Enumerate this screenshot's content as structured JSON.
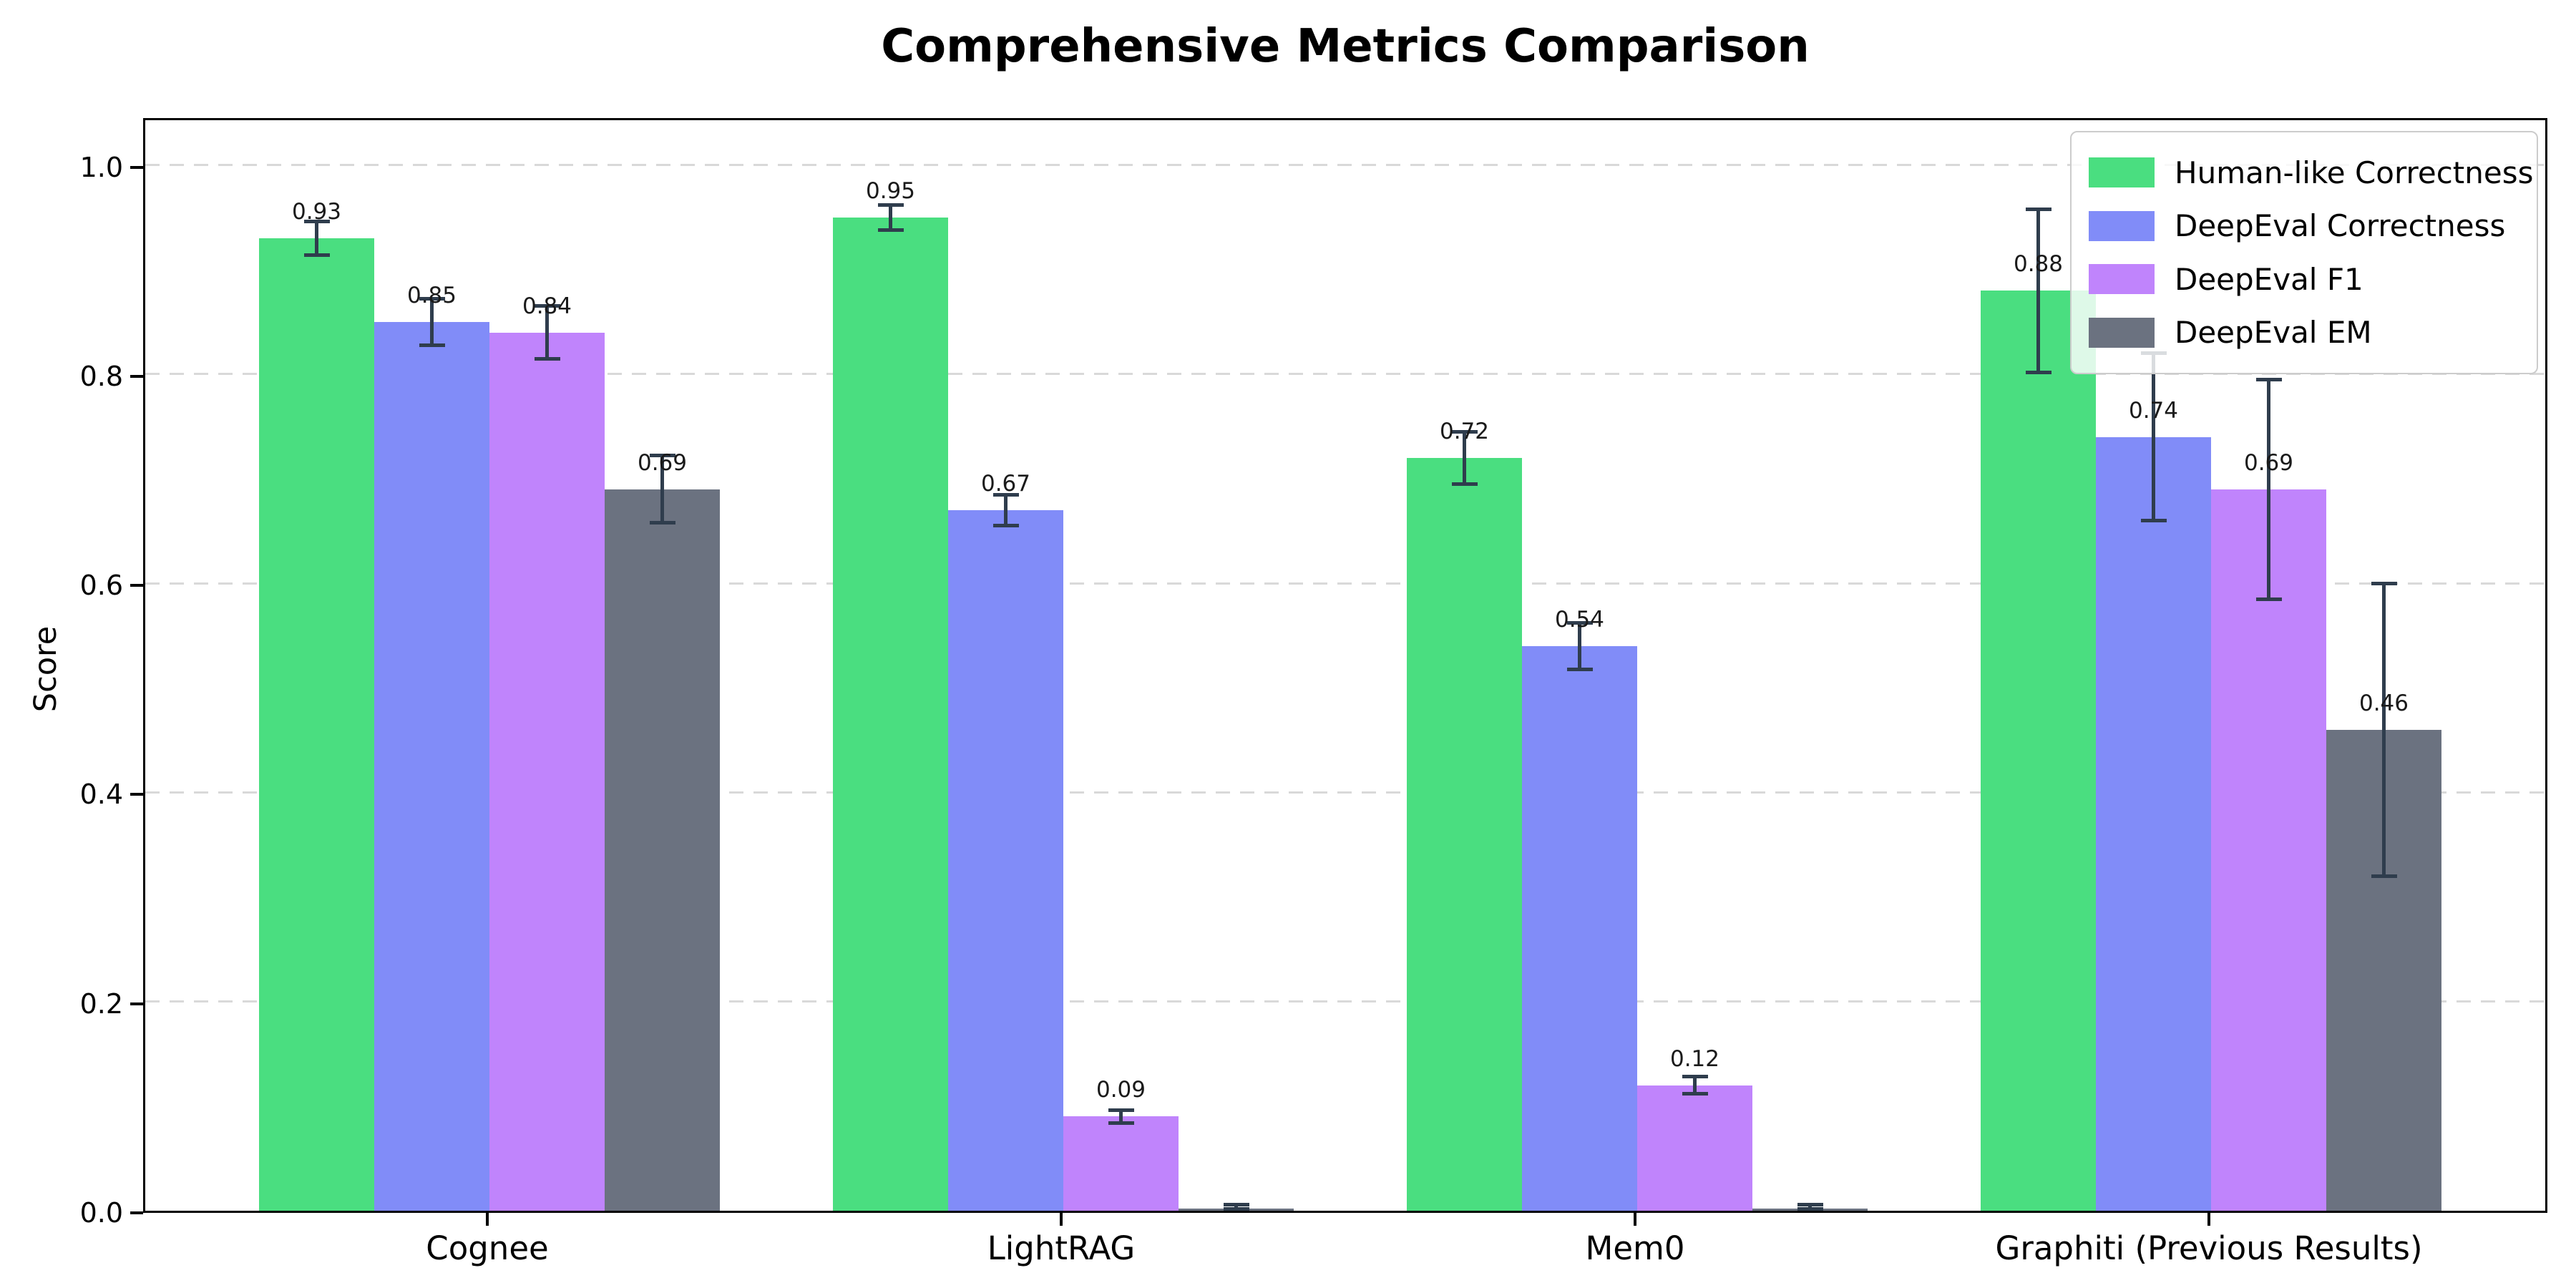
{
  "title": "Comprehensive Metrics Comparison",
  "chart_data": {
    "type": "bar",
    "title": "Comprehensive Metrics Comparison",
    "xlabel": "",
    "ylabel": "Score",
    "categories": [
      "Cognee",
      "LightRAG",
      "Mem0",
      "Graphiti (Previous Results)"
    ],
    "ylim": [
      0,
      1.047
    ],
    "yticks": [
      0.0,
      0.2,
      0.4,
      0.6,
      0.8,
      1.0
    ],
    "ytick_labels": [
      "0.0",
      "0.2",
      "0.4",
      "0.6",
      "0.8",
      "1.0"
    ],
    "grid": "horizontal-dashed",
    "grid_color": "#d9d9d9",
    "legend_position": "upper-right",
    "error_bar_color": "#2f3d4d",
    "bar_label_color": "#1a1a1a",
    "series": [
      {
        "name": "Human-like Correctness",
        "color": "#4ade80",
        "values": [
          0.93,
          0.95,
          0.72,
          0.88
        ],
        "errors": [
          0.016,
          0.012,
          0.025,
          0.078
        ],
        "bar_labels": [
          "0.93",
          "0.95",
          "0.72",
          "0.88"
        ]
      },
      {
        "name": "DeepEval Correctness",
        "color": "#818cf8",
        "values": [
          0.85,
          0.67,
          0.54,
          0.74
        ],
        "errors": [
          0.022,
          0.015,
          0.022,
          0.08
        ],
        "bar_labels": [
          "0.85",
          "0.67",
          "0.54",
          "0.74"
        ]
      },
      {
        "name": "DeepEval F1",
        "color": "#c084fc",
        "values": [
          0.84,
          0.09,
          0.12,
          0.69
        ],
        "errors": [
          0.025,
          0.006,
          0.008,
          0.105
        ],
        "bar_labels": [
          "0.84",
          "0.09",
          "0.12",
          "0.69"
        ]
      },
      {
        "name": "DeepEval EM",
        "color": "#6b7280",
        "values": [
          0.69,
          0.002,
          0.002,
          0.46
        ],
        "errors": [
          0.032,
          0.004,
          0.004,
          0.14
        ],
        "bar_labels": [
          "0.69",
          "",
          "",
          "0.46"
        ]
      }
    ]
  }
}
